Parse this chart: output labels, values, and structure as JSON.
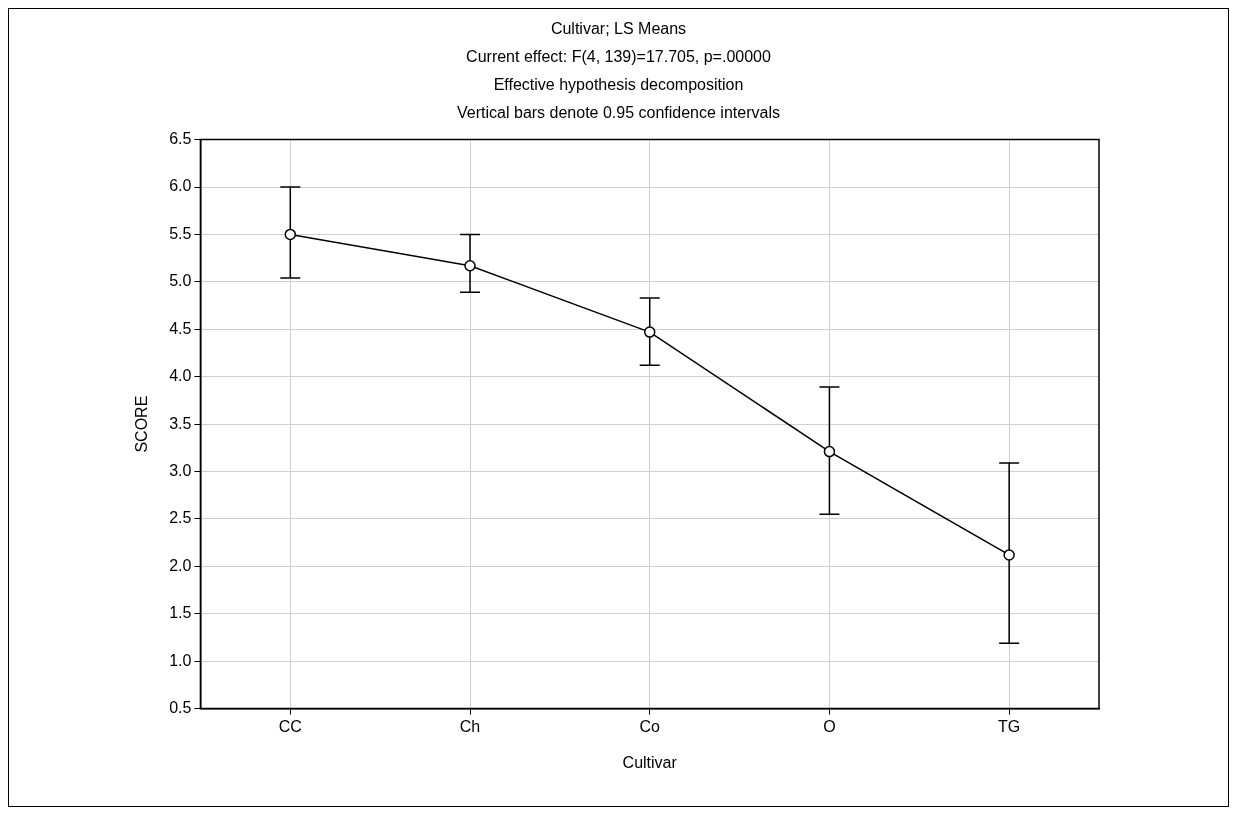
{
  "chart_data": {
    "type": "line",
    "title": "Cultivar; LS Means",
    "subtitle": "Current effect: F(4, 139)=17.705, p=.00000",
    "annotations": [
      "Effective hypothesis decomposition",
      "Vertical bars denote 0.95 confidence intervals"
    ],
    "xlabel": "Cultivar",
    "ylabel": "SCORE",
    "categories": [
      "CC",
      "Ch",
      "Co",
      "O",
      "TG"
    ],
    "series": [
      {
        "color": "#000000",
        "values": [
          5.5,
          5.17,
          4.47,
          3.21,
          2.12
        ],
        "errors": [
          [
            5.04,
            6.0
          ],
          [
            4.89,
            5.5
          ],
          [
            4.12,
            4.83
          ],
          [
            2.55,
            3.89
          ],
          [
            1.19,
            3.09
          ]
        ]
      }
    ],
    "ylim": [
      0.5,
      6.5
    ],
    "yticks": [
      0.5,
      {
        "value": 1,
        "label": "1.0"
      },
      1.5,
      {
        "value": 2,
        "label": "2.0"
      },
      2.5,
      {
        "value": 3,
        "label": "3.0"
      },
      3.5,
      {
        "value": 4,
        "label": "4.0"
      },
      4.5,
      {
        "value": 5,
        "label": "5.0"
      },
      5.5,
      {
        "value": 6,
        "label": "6.0"
      },
      6.5
    ],
    "grid": true,
    "legend": false,
    "marker": "circle",
    "line_style": "solid"
  }
}
